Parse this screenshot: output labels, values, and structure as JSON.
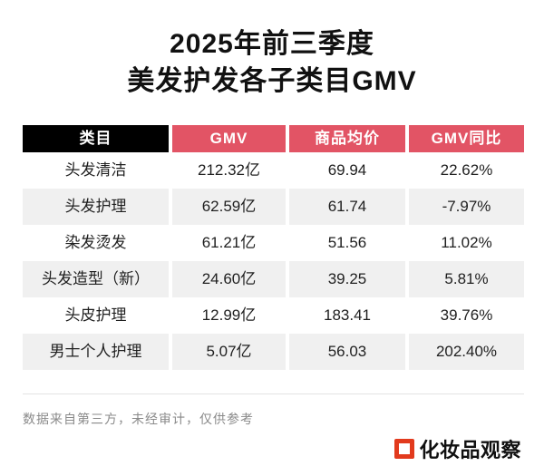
{
  "title": {
    "line1": "2025年前三季度",
    "line2": "美发护发各子类目GMV"
  },
  "table": {
    "columns": [
      "类目",
      "GMV",
      "商品均价",
      "GMV同比"
    ],
    "rows": [
      {
        "category": "头发清洁",
        "gmv": "212.32亿",
        "avg_price": "69.94",
        "gmv_yoy": "22.62%"
      },
      {
        "category": "头发护理",
        "gmv": "62.59亿",
        "avg_price": "61.74",
        "gmv_yoy": "-7.97%"
      },
      {
        "category": "染发烫发",
        "gmv": "61.21亿",
        "avg_price": "51.56",
        "gmv_yoy": "11.02%"
      },
      {
        "category": "头发造型（新）",
        "gmv": "24.60亿",
        "avg_price": "39.25",
        "gmv_yoy": "5.81%"
      },
      {
        "category": "头皮护理",
        "gmv": "12.99亿",
        "avg_price": "183.41",
        "gmv_yoy": "39.76%"
      },
      {
        "category": "男士个人护理",
        "gmv": "5.07亿",
        "avg_price": "56.03",
        "gmv_yoy": "202.40%"
      }
    ]
  },
  "chart_data": {
    "type": "table",
    "title": "2025年前三季度美发护发各子类目GMV",
    "columns": [
      "类目",
      "GMV",
      "商品均价",
      "GMV同比"
    ],
    "categories": [
      "头发清洁",
      "头发护理",
      "染发烫发",
      "头发造型（新）",
      "头皮护理",
      "男士个人护理"
    ],
    "series": [
      {
        "name": "GMV（亿）",
        "values": [
          212.32,
          62.59,
          61.21,
          24.6,
          12.99,
          5.07
        ]
      },
      {
        "name": "商品均价",
        "values": [
          69.94,
          61.74,
          51.56,
          39.25,
          183.41,
          56.03
        ]
      },
      {
        "name": "GMV同比（%）",
        "values": [
          22.62,
          -7.97,
          11.02,
          5.81,
          39.76,
          202.4
        ]
      }
    ]
  },
  "footer": {
    "disclaimer": "数据来自第三方，未经审计，仅供参考",
    "brand": "化妆品观察"
  },
  "colors": {
    "header_category_bg": "#000000",
    "header_metric_bg": "#e25465",
    "row_alt_bg": "#f0f0f0",
    "brand_red": "#e23a1d",
    "footer_text": "#8a8a8a",
    "body_text": "#1f1f1f"
  }
}
